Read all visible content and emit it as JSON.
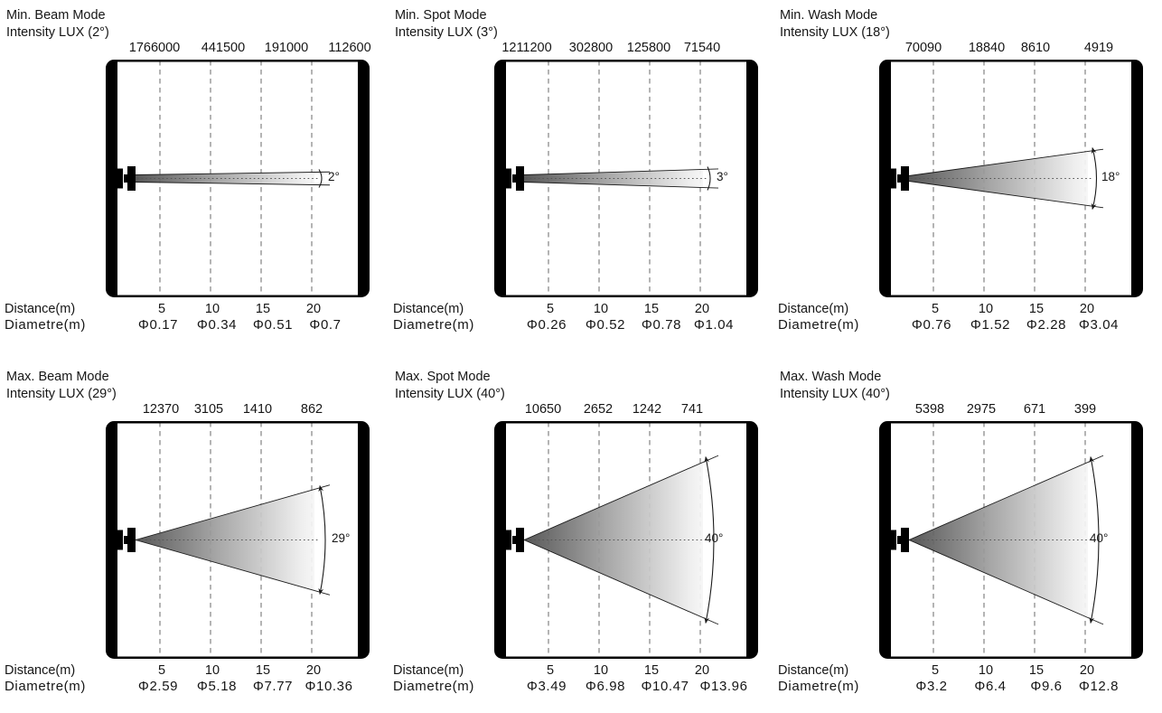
{
  "labels": {
    "distance": "Distance(m)",
    "diametre": "Diametre(m)"
  },
  "colors": {
    "frame": "#000000",
    "dashed_line": "#8c8c8c",
    "beam_dark": "#4b4b4b",
    "beam_light": "#f6f6f6",
    "text": "#161616"
  },
  "panels": [
    {
      "title_line1": "Min. Beam Mode",
      "title_line2": "Intensity LUX (2°)",
      "angle_label": "2°",
      "angle_degrees": 2,
      "lux": [
        "1766000",
        "441500",
        "191000",
        "112600"
      ],
      "distances": [
        "5",
        "10",
        "15",
        "20"
      ],
      "diameters": [
        "Φ0.17",
        "Φ0.34",
        "Φ0.51",
        "Φ0.7"
      ]
    },
    {
      "title_line1": "Min. Spot Mode",
      "title_line2": "Intensity LUX (3°)",
      "angle_label": "3°",
      "angle_degrees": 3,
      "lux": [
        "1211200",
        "302800",
        "125800",
        "71540"
      ],
      "distances": [
        "5",
        "10",
        "15",
        "20"
      ],
      "diameters": [
        "Φ0.26",
        "Φ0.52",
        "Φ0.78",
        "Φ1.04"
      ]
    },
    {
      "title_line1": "Min. Wash Mode",
      "title_line2": "Intensity LUX (18°)",
      "angle_label": "18°",
      "angle_degrees": 18,
      "lux": [
        "70090",
        "18840",
        "8610",
        "4919"
      ],
      "distances": [
        "5",
        "10",
        "15",
        "20"
      ],
      "diameters": [
        "Φ0.76",
        "Φ1.52",
        "Φ2.28",
        "Φ3.04"
      ]
    },
    {
      "title_line1": "Max. Beam Mode",
      "title_line2": "Intensity LUX (29°)",
      "angle_label": "29°",
      "angle_degrees": 29,
      "lux": [
        "12370",
        "3105",
        "1410",
        "862"
      ],
      "distances": [
        "5",
        "10",
        "15",
        "20"
      ],
      "diameters": [
        "Φ2.59",
        "Φ5.18",
        "Φ7.77",
        "Φ10.36"
      ]
    },
    {
      "title_line1": "Max. Spot Mode",
      "title_line2": "Intensity LUX (40°)",
      "angle_label": "40°",
      "angle_degrees": 40,
      "lux": [
        "10650",
        "2652",
        "1242",
        "741"
      ],
      "distances": [
        "5",
        "10",
        "15",
        "20"
      ],
      "diameters": [
        "Φ3.49",
        "Φ6.98",
        "Φ10.47",
        "Φ13.96"
      ]
    },
    {
      "title_line1": "Max. Wash Mode",
      "title_line2": "Intensity LUX (40°)",
      "angle_label": "40°",
      "angle_degrees": 40,
      "lux": [
        "5398",
        "2975",
        "671",
        "399"
      ],
      "distances": [
        "5",
        "10",
        "15",
        "20"
      ],
      "diameters": [
        "Φ3.2",
        "Φ6.4",
        "Φ9.6",
        "Φ12.8"
      ]
    }
  ]
}
